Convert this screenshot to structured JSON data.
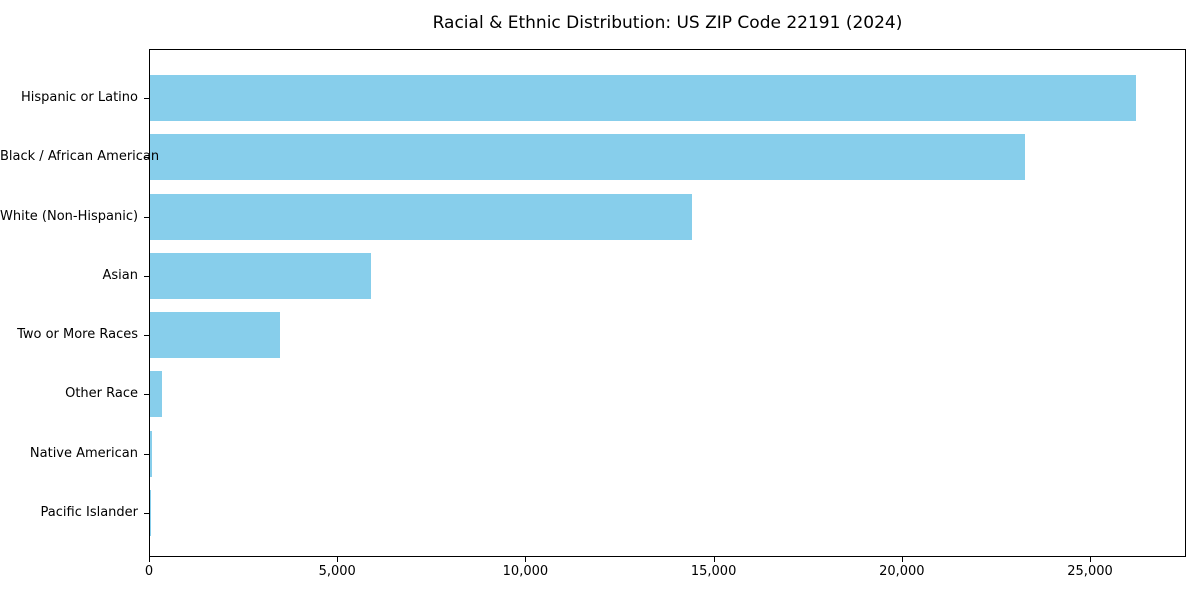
{
  "chart_data": {
    "type": "bar",
    "orientation": "horizontal",
    "title": "Racial & Ethnic Distribution: US ZIP Code 22191 (2024)",
    "categories": [
      "Hispanic or Latino",
      "Black / African American",
      "White (Non-Hispanic)",
      "Asian",
      "Two or More Races",
      "Other Race",
      "Native American",
      "Pacific Islander"
    ],
    "values": [
      26200,
      23250,
      14400,
      5870,
      3450,
      320,
      50,
      20
    ],
    "xlabel": "",
    "ylabel": "",
    "xlim": [
      0,
      27550
    ],
    "xticks": [
      0,
      5000,
      10000,
      15000,
      20000,
      25000
    ],
    "xtick_labels": [
      "0",
      "5,000",
      "10,000",
      "15,000",
      "20,000",
      "25,000"
    ],
    "bar_color": "#87CEEB",
    "text_color": "#000000",
    "grid": false,
    "legend": null
  }
}
